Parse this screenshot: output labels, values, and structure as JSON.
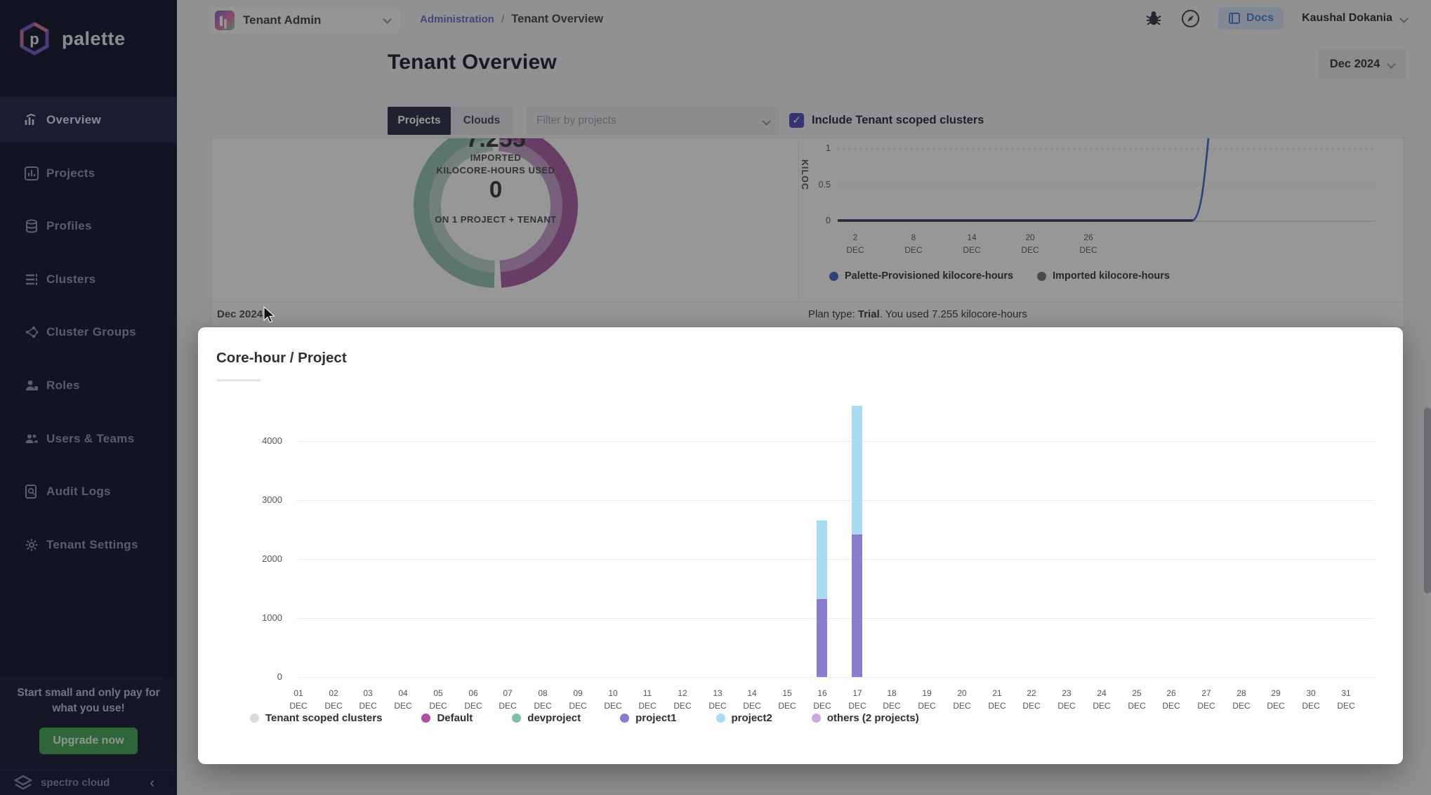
{
  "colors": {
    "sidebar_bg": "#0a0d26",
    "accent_purple": "#4c46b8",
    "tab_active_bg": "#23273c",
    "upgrade_green": "#3da04f",
    "docs_blue": "#4678c8",
    "donut_green": "#92c0a9",
    "donut_green_light": "#b7d3c4",
    "donut_purple": "#a4569f",
    "donut_purple_light": "#c49ac6",
    "line_blue": "#3f5ec2",
    "line_dark": "#2a2f52",
    "imported_dot": "#6f6f76"
  },
  "sidebar": {
    "brand": "palette",
    "items": [
      {
        "icon": "overview-icon",
        "label": "Overview",
        "active": true
      },
      {
        "icon": "projects-icon",
        "label": "Projects",
        "active": false
      },
      {
        "icon": "profiles-icon",
        "label": "Profiles",
        "active": false
      },
      {
        "icon": "clusters-icon",
        "label": "Clusters",
        "active": false
      },
      {
        "icon": "cluster-groups-icon",
        "label": "Cluster Groups",
        "active": false
      },
      {
        "icon": "roles-icon",
        "label": "Roles",
        "active": false
      },
      {
        "icon": "users-teams-icon",
        "label": "Users & Teams",
        "active": false
      },
      {
        "icon": "audit-logs-icon",
        "label": "Audit Logs",
        "active": false
      },
      {
        "icon": "tenant-settings-icon",
        "label": "Tenant Settings",
        "active": false
      }
    ],
    "promo": {
      "text": "Start small and only pay for what you use!",
      "button": "Upgrade now"
    },
    "footer": {
      "brand": "spectro cloud",
      "collapse": "‹"
    }
  },
  "topbar": {
    "tenant_selector": "Tenant Admin",
    "breadcrumb": {
      "link": "Administration",
      "separator": "/",
      "current": "Tenant Overview"
    },
    "docs": "Docs",
    "user": "Kaushal Dokania"
  },
  "page": {
    "title": "Tenant Overview",
    "period": "Dec 2024"
  },
  "toolbar": {
    "tabs": [
      "Projects",
      "Clouds"
    ],
    "filter_placeholder": "Filter by projects",
    "checkbox_label": "Include Tenant scoped clusters",
    "checkbox_checked": "✓"
  },
  "usage_card": {
    "clipped_value": "7.255",
    "label_line1": "IMPORTED",
    "label_line2": "KILOCORE-HOURS USED",
    "value": "0",
    "label_line3": "ON 1 PROJECT + TENANT",
    "footer": "Dec 2024"
  },
  "plan": {
    "label": "Plan type:",
    "value": " Trial",
    "rest": ". You used 7.255 kilocore-hours"
  },
  "chart_data": [
    {
      "type": "line",
      "ylabel": "KILOC",
      "y_ticks": [
        "1",
        "0.5",
        "0"
      ],
      "x_ticks": [
        "2 DEC",
        "8 DEC",
        "14 DEC",
        "20 DEC",
        "26 DEC"
      ],
      "ylim_visible": [
        0,
        1
      ],
      "series": [
        {
          "name": "Palette-Provisioned kilocore-hours",
          "color": "#3f5ec2",
          "summary": "0 from 2 Dec to 16 Dec, then rises sharply off-scale (~7.255 total) at 17 Dec"
        },
        {
          "name": "Imported kilocore-hours",
          "color": "#6f6f76",
          "summary": "0 throughout"
        }
      ],
      "legend_position": "bottom"
    },
    {
      "type": "bar",
      "stacked": true,
      "title": "Core-hour / Project",
      "y_ticks": [
        0,
        1000,
        2000,
        3000,
        4000
      ],
      "ylim": [
        0,
        4700
      ],
      "categories": [
        "01 DEC",
        "02 DEC",
        "03 DEC",
        "04 DEC",
        "05 DEC",
        "06 DEC",
        "07 DEC",
        "08 DEC",
        "09 DEC",
        "10 DEC",
        "11 DEC",
        "12 DEC",
        "13 DEC",
        "14 DEC",
        "15 DEC",
        "16 DEC",
        "17 DEC",
        "18 DEC",
        "19 DEC",
        "20 DEC",
        "21 DEC",
        "22 DEC",
        "23 DEC",
        "24 DEC",
        "25 DEC",
        "26 DEC",
        "27 DEC",
        "28 DEC",
        "29 DEC",
        "30 DEC",
        "31 DEC"
      ],
      "series": [
        {
          "name": "Tenant scoped clusters",
          "color": "#d9d9de",
          "points": {}
        },
        {
          "name": "Default",
          "color": "#b14fa4",
          "points": {}
        },
        {
          "name": "devproject",
          "color": "#7fbfa2",
          "points": {}
        },
        {
          "name": "project1",
          "color": "#8b7cce",
          "points": {
            "16 DEC": 1320,
            "17 DEC": 2420
          }
        },
        {
          "name": "project2",
          "color": "#a9dcf2",
          "points": {
            "16 DEC": 1330,
            "17 DEC": 2180
          }
        },
        {
          "name": "others (2 projects)",
          "color": "#c9a8dc",
          "points": {}
        }
      ],
      "grid": true,
      "legend_position": "bottom"
    }
  ]
}
